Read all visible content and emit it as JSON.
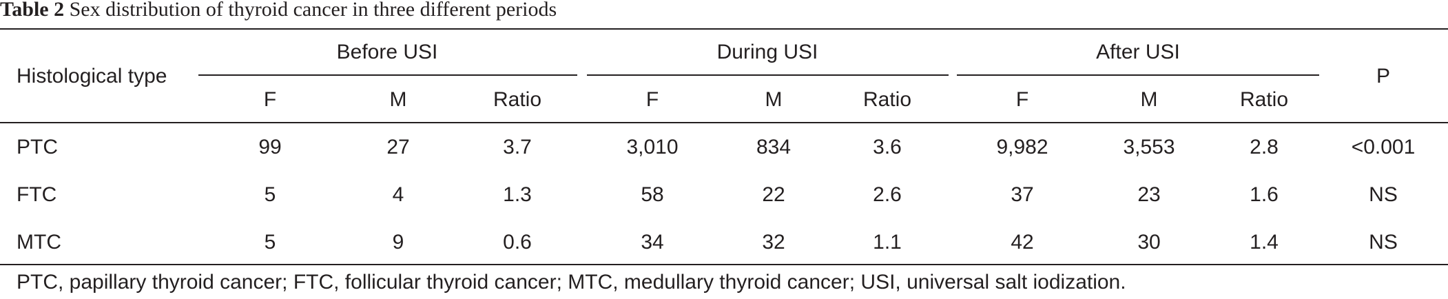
{
  "caption": {
    "label": "Table 2",
    "text": "Sex distribution of thyroid cancer in three different periods"
  },
  "table": {
    "row_header": "Histological type",
    "groups": [
      {
        "label": "Before USI",
        "subcolumns": [
          "F",
          "M",
          "Ratio"
        ]
      },
      {
        "label": "During USI",
        "subcolumns": [
          "F",
          "M",
          "Ratio"
        ]
      },
      {
        "label": "After USI",
        "subcolumns": [
          "F",
          "M",
          "Ratio"
        ]
      }
    ],
    "p_header": "P",
    "rows": [
      {
        "type": "PTC",
        "values": [
          "99",
          "27",
          "3.7",
          "3,010",
          "834",
          "3.6",
          "9,982",
          "3,553",
          "2.8"
        ],
        "p": "<0.001"
      },
      {
        "type": "FTC",
        "values": [
          "5",
          "4",
          "1.3",
          "58",
          "22",
          "2.6",
          "37",
          "23",
          "1.6"
        ],
        "p": "NS"
      },
      {
        "type": "MTC",
        "values": [
          "5",
          "9",
          "0.6",
          "34",
          "32",
          "1.1",
          "42",
          "30",
          "1.4"
        ],
        "p": "NS"
      }
    ]
  },
  "footnote": "PTC, papillary thyroid cancer; FTC, follicular thyroid cancer; MTC, medullary thyroid cancer; USI, universal salt iodization."
}
